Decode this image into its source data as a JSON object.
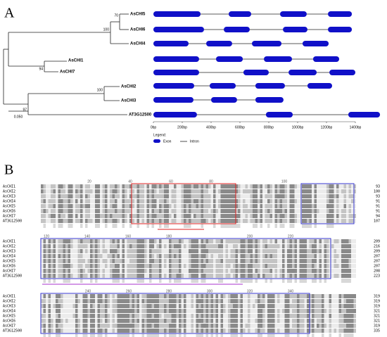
{
  "panel_a": {
    "label": "A",
    "tree": {
      "leaves": [
        "AsCHI5",
        "AsCHI6",
        "AsCHI4",
        "AsCHI1",
        "AsCHI7",
        "AsCHI2",
        "AsCHI3",
        "AT3G12500"
      ],
      "bootstrap": [
        70,
        100,
        94,
        100,
        97
      ],
      "scale": "0.050"
    },
    "gene_structure": {
      "xlim": [
        0,
        1600
      ],
      "xticks": [
        {
          "value": 0,
          "label": "0bp"
        },
        {
          "value": 200,
          "label": "200bp"
        },
        {
          "value": 400,
          "label": "400bp"
        },
        {
          "value": 600,
          "label": "600bp"
        },
        {
          "value": 800,
          "label": "800bp"
        },
        {
          "value": 1000,
          "label": "1000bp"
        },
        {
          "value": 1200,
          "label": "1200bp"
        },
        {
          "value": 1400,
          "label": "1400bp"
        }
      ],
      "rows": [
        [
          [
            0,
            327
          ],
          [
            522,
            678
          ],
          [
            878,
            1063
          ],
          [
            1210,
            1376
          ]
        ],
        [
          [
            0,
            351
          ],
          [
            488,
            668
          ],
          [
            898,
            1068
          ],
          [
            1210,
            1376
          ]
        ],
        [
          [
            0,
            244
          ],
          [
            366,
            546
          ],
          [
            683,
            888
          ],
          [
            1034,
            1215
          ]
        ],
        [
          [
            0,
            317
          ],
          [
            434,
            620
          ],
          [
            766,
            961
          ],
          [
            1107,
            1288
          ]
        ],
        [
          [
            0,
            317
          ],
          [
            624,
            800
          ],
          [
            937,
            1132
          ],
          [
            1220,
            1400
          ]
        ],
        [
          [
            0,
            283
          ],
          [
            390,
            571
          ],
          [
            707,
            912
          ],
          [
            1068,
            1239
          ]
        ],
        [
          [
            0,
            278
          ],
          [
            400,
            580
          ],
          [
            707,
            902
          ]
        ],
        [
          [
            0,
            302
          ],
          [
            780,
            966
          ],
          [
            1351,
            1571
          ]
        ]
      ],
      "legend": {
        "title": "Legend:",
        "exon": "Exon",
        "intron": "Intron"
      }
    }
  },
  "panel_b": {
    "label": "B",
    "sequences": [
      "AsCHI1",
      "AsCHI2",
      "AsCHI3",
      "AsCHI4",
      "AsCHI5",
      "AsCHI6",
      "AsCHI7",
      "AT3G12500"
    ],
    "blocks": [
      {
        "ruler": [
          20,
          40,
          60,
          80,
          100
        ],
        "ends": [
          93,
          100,
          93,
          91,
          91,
          91,
          94,
          107
        ]
      },
      {
        "ruler": [
          120,
          140,
          160,
          180,
          200,
          220
        ],
        "ends": [
          209,
          216,
          209,
          207,
          207,
          207,
          208,
          223
        ]
      },
      {
        "ruler": [
          240,
          260,
          280,
          300,
          320,
          340
        ],
        "ends": [
          319,
          319,
          319,
          321,
          321,
          321,
          319,
          335
        ]
      }
    ]
  }
}
